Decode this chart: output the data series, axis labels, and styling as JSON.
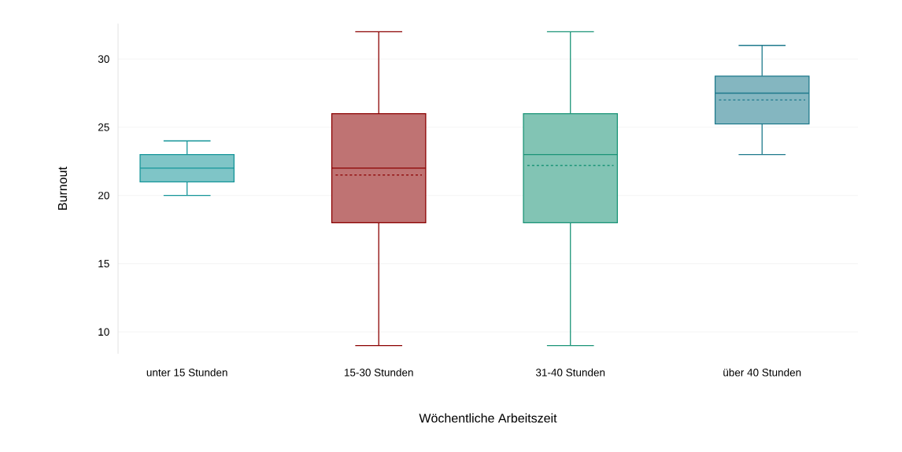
{
  "chart_data": {
    "type": "box",
    "xlabel": "Wöchentliche Arbeitszeit",
    "ylabel": "Burnout",
    "categories": [
      "unter 15 Stunden",
      "15-30 Stunden",
      "31-40 Stunden",
      "über 40 Stunden"
    ],
    "colors": [
      "#17969a",
      "#8b0000",
      "#1b9477",
      "#1f7a8c"
    ],
    "boxes": [
      {
        "low": 20,
        "q1": 21,
        "median": 22,
        "q3": 23,
        "high": 24
      },
      {
        "low": 9,
        "q1": 18,
        "median": 22,
        "q3": 26,
        "high": 32,
        "mean": 21.5
      },
      {
        "low": 9,
        "q1": 18,
        "median": 23,
        "q3": 26,
        "high": 32,
        "mean": 22.2
      },
      {
        "low": 23,
        "q1": 25.25,
        "median": 27.5,
        "q3": 28.75,
        "high": 31,
        "mean": 27.0
      }
    ],
    "ylim": [
      8.4,
      32.6
    ],
    "yticks": [
      10,
      15,
      20,
      25,
      30
    ],
    "grid": "y"
  }
}
